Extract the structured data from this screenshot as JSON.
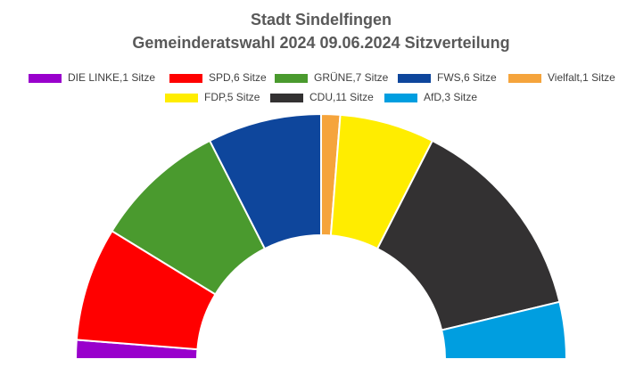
{
  "chart_data": {
    "type": "semicircle",
    "title": "Stadt Sindelfingen",
    "subtitle": "Gemeinderatswahl 2024 09.06.2024 Sitzverteilung",
    "categories": [
      "DIE LINKE,1 Sitze",
      "SPD,6 Sitze",
      "GRÜNE,7 Sitze",
      "FWS,6 Sitze",
      "Vielfalt,1 Sitze",
      "FDP,5 Sitze",
      "CDU,11 Sitze",
      "AfD,3 Sitze"
    ],
    "values": [
      1,
      6,
      7,
      6,
      1,
      5,
      11,
      3
    ],
    "colors": [
      "#9900cc",
      "#ff0000",
      "#4a9a2e",
      "#0e469c",
      "#f5a43c",
      "#ffed00",
      "#333132",
      "#009ee0"
    ]
  }
}
